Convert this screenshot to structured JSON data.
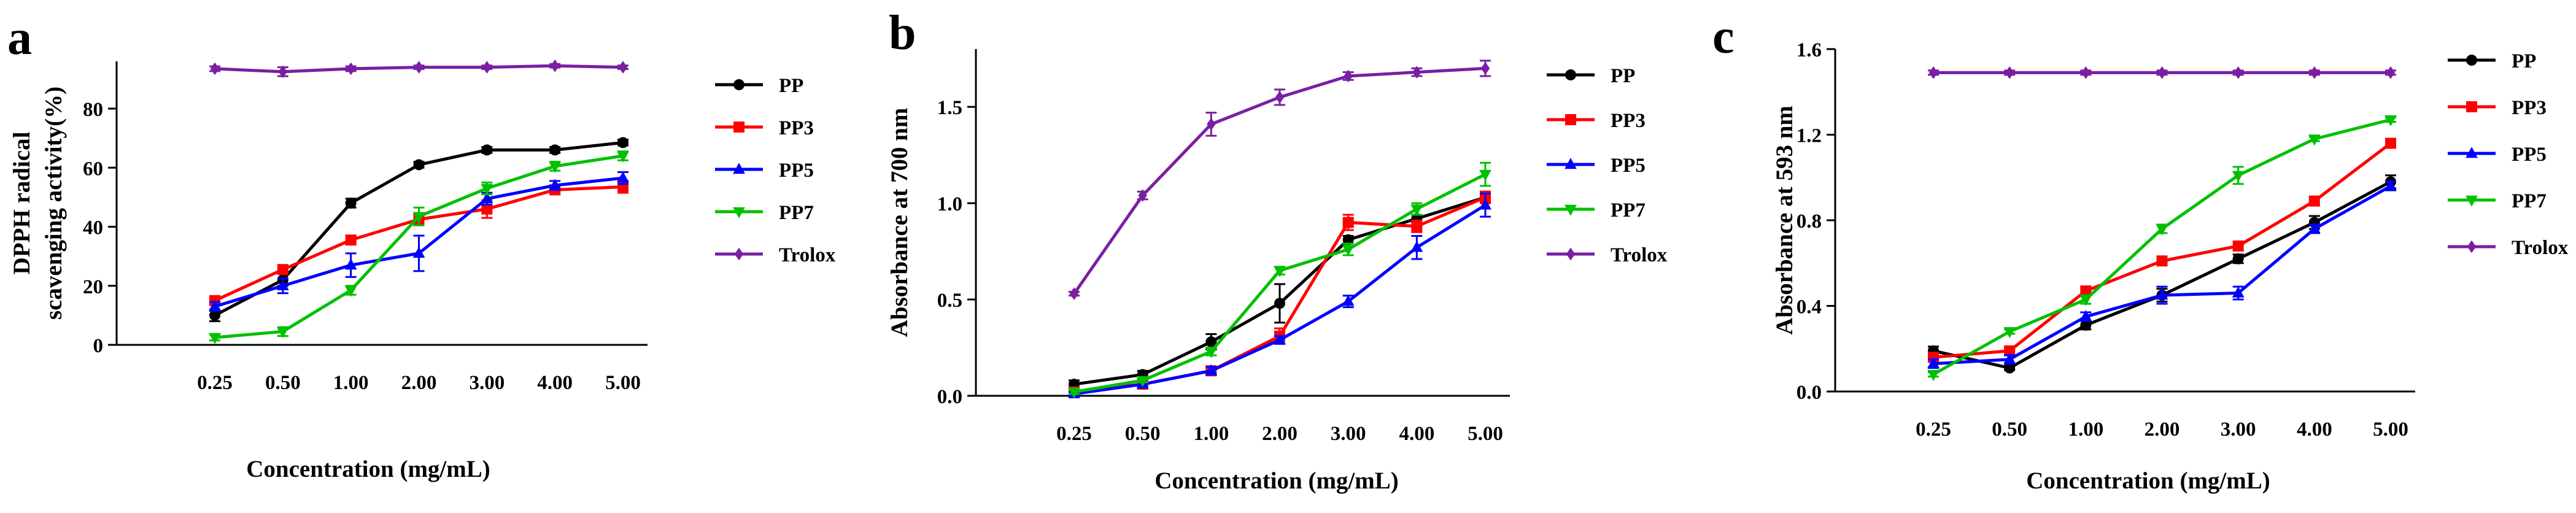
{
  "colors": {
    "PP": "#000000",
    "PP3": "#ff0000",
    "PP5": "#0000ff",
    "PP7": "#00c000",
    "Trolox": "#7a1fa2"
  },
  "chart_data": [
    {
      "type": "line",
      "panel_letter": "a",
      "categories": [
        "0.25",
        "0.50",
        "1.00",
        "2.00",
        "3.00",
        "4.00",
        "5.00"
      ],
      "xlabel": "Concentration (mg/mL)",
      "ylabel_lines": [
        "DPPH radical",
        "scavenging activity(%)"
      ],
      "ylim": [
        0,
        96
      ],
      "yticks": [
        0,
        20,
        40,
        60,
        80
      ],
      "ytick_labels": [
        "0",
        "20",
        "40",
        "60",
        "80"
      ],
      "series": [
        {
          "name": "PP",
          "marker": "circle",
          "values": [
            10,
            22,
            48,
            61,
            66,
            66,
            68.5
          ],
          "errors": [
            2,
            2,
            1.5,
            1,
            1,
            1,
            1
          ]
        },
        {
          "name": "PP3",
          "marker": "square",
          "values": [
            15,
            25.5,
            35.5,
            42.5,
            46,
            52.5,
            53.5
          ],
          "errors": [
            1.5,
            1.5,
            1.5,
            2,
            3,
            1.5,
            2
          ]
        },
        {
          "name": "PP5",
          "marker": "triangle-up",
          "values": [
            13,
            20,
            27,
            31,
            49.5,
            54,
            56.5
          ],
          "errors": [
            1.5,
            2.5,
            4,
            6,
            2,
            1.5,
            2
          ]
        },
        {
          "name": "PP7",
          "marker": "triangle-down",
          "values": [
            2.5,
            4.5,
            18.5,
            43.5,
            53,
            60.5,
            64
          ],
          "errors": [
            1,
            1.5,
            1.5,
            3,
            2,
            1.5,
            1.5
          ]
        },
        {
          "name": "Trolox",
          "marker": "diamond",
          "values": [
            93.5,
            92.5,
            93.5,
            94,
            94,
            94.5,
            94
          ],
          "errors": [
            0.8,
            1.5,
            0.8,
            0.6,
            0.6,
            0.6,
            0.6
          ]
        }
      ]
    },
    {
      "type": "line",
      "panel_letter": "b",
      "categories": [
        "0.25",
        "0.50",
        "1.00",
        "2.00",
        "3.00",
        "4.00",
        "5.00"
      ],
      "xlabel": "Concentration (mg/mL)",
      "ylabel_lines": [
        "Absorbance at 700 nm"
      ],
      "ylim": [
        0,
        1.8
      ],
      "yticks": [
        0,
        0.5,
        1.0,
        1.5
      ],
      "ytick_labels": [
        "0.0",
        "0.5",
        "1.0",
        "1.5"
      ],
      "series": [
        {
          "name": "PP",
          "marker": "circle",
          "values": [
            0.06,
            0.11,
            0.28,
            0.48,
            0.81,
            0.92,
            1.03
          ],
          "errors": [
            0.02,
            0.02,
            0.04,
            0.1,
            0.02,
            0.02,
            0.03
          ]
        },
        {
          "name": "PP3",
          "marker": "square",
          "values": [
            0.02,
            0.06,
            0.13,
            0.31,
            0.9,
            0.88,
            1.03
          ],
          "errors": [
            0.01,
            0.01,
            0.02,
            0.04,
            0.04,
            0.03,
            0.03
          ]
        },
        {
          "name": "PP5",
          "marker": "triangle-up",
          "values": [
            0.01,
            0.06,
            0.13,
            0.29,
            0.49,
            0.77,
            0.99
          ],
          "errors": [
            0.01,
            0.01,
            0.02,
            0.02,
            0.03,
            0.06,
            0.06
          ]
        },
        {
          "name": "PP7",
          "marker": "triangle-down",
          "values": [
            0.02,
            0.08,
            0.23,
            0.65,
            0.76,
            0.97,
            1.15
          ],
          "errors": [
            0.01,
            0.01,
            0.02,
            0.02,
            0.03,
            0.03,
            0.06
          ]
        },
        {
          "name": "Trolox",
          "marker": "diamond",
          "values": [
            0.53,
            1.04,
            1.41,
            1.55,
            1.66,
            1.68,
            1.7
          ],
          "errors": [
            0.01,
            0.02,
            0.06,
            0.04,
            0.02,
            0.02,
            0.04
          ]
        }
      ]
    },
    {
      "type": "line",
      "panel_letter": "c",
      "categories": [
        "0.25",
        "0.50",
        "1.00",
        "2.00",
        "3.00",
        "4.00",
        "5.00"
      ],
      "xlabel": "Concentration (mg/mL)",
      "ylabel_lines": [
        "Absorbance at 593 nm"
      ],
      "ylim": [
        0,
        1.6
      ],
      "yticks": [
        0,
        0.4,
        0.8,
        1.2,
        1.6
      ],
      "ytick_labels": [
        "0.0",
        "0.4",
        "0.8",
        "1.2",
        "1.6"
      ],
      "series": [
        {
          "name": "PP",
          "marker": "circle",
          "values": [
            0.19,
            0.11,
            0.31,
            0.45,
            0.62,
            0.79,
            0.98
          ],
          "errors": [
            0.02,
            0.01,
            0.02,
            0.03,
            0.02,
            0.03,
            0.03
          ]
        },
        {
          "name": "PP3",
          "marker": "square",
          "values": [
            0.16,
            0.19,
            0.47,
            0.61,
            0.68,
            0.89,
            1.16
          ],
          "errors": [
            0.02,
            0.02,
            0.02,
            0.02,
            0.02,
            0.02,
            0.02
          ]
        },
        {
          "name": "PP5",
          "marker": "triangle-up",
          "values": [
            0.13,
            0.15,
            0.35,
            0.45,
            0.46,
            0.76,
            0.96
          ],
          "errors": [
            0.02,
            0.02,
            0.02,
            0.04,
            0.03,
            0.02,
            0.02
          ]
        },
        {
          "name": "PP7",
          "marker": "triangle-down",
          "values": [
            0.08,
            0.28,
            0.43,
            0.76,
            1.01,
            1.18,
            1.27
          ],
          "errors": [
            0.01,
            0.01,
            0.02,
            0.02,
            0.04,
            0.01,
            0.01
          ]
        },
        {
          "name": "Trolox",
          "marker": "diamond",
          "values": [
            1.49,
            1.49,
            1.49,
            1.49,
            1.49,
            1.49,
            1.49
          ],
          "errors": [
            0.01,
            0.01,
            0.01,
            0.01,
            0.01,
            0.01,
            0.01
          ]
        }
      ]
    }
  ]
}
